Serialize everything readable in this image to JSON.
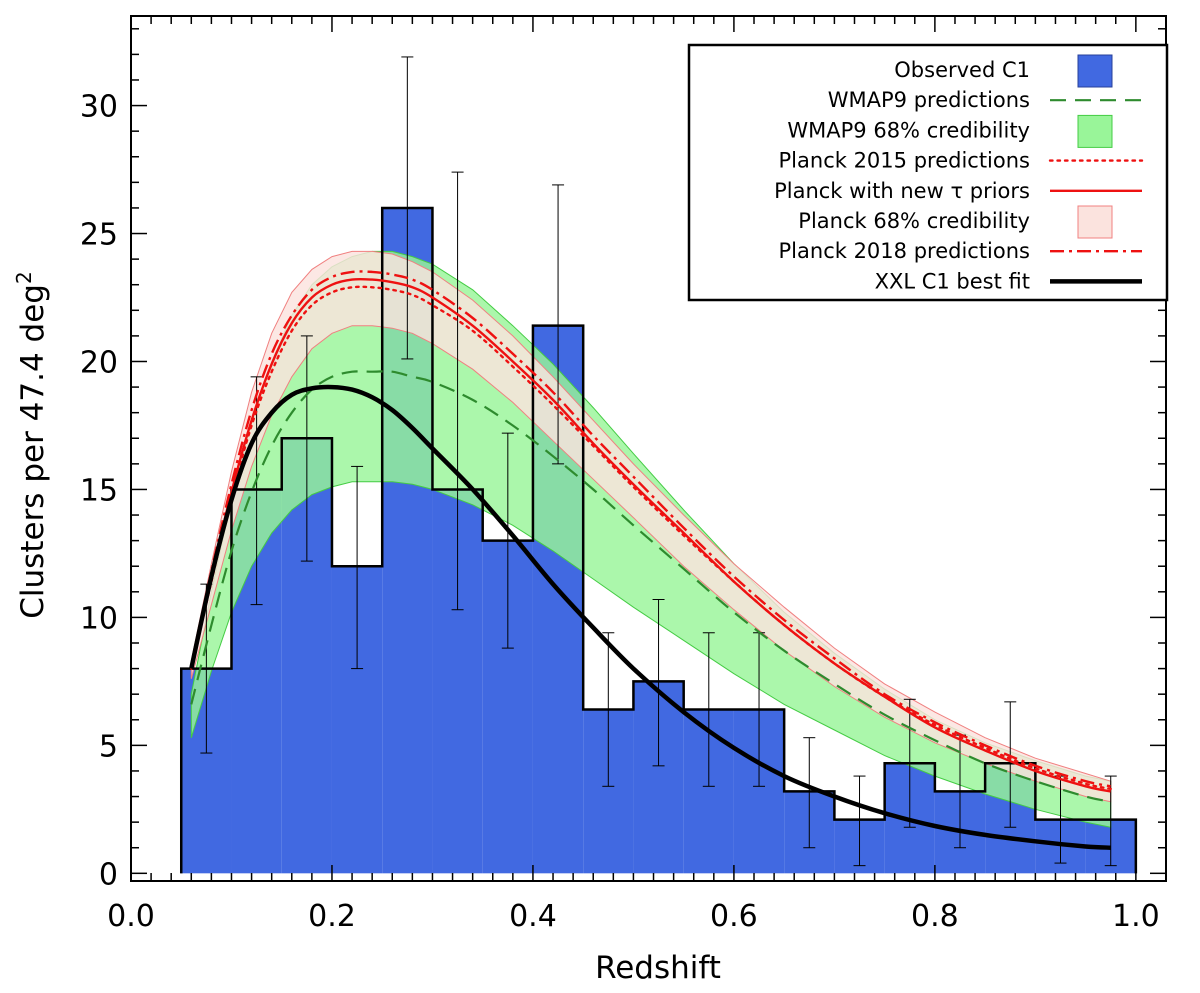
{
  "chart_data": {
    "type": "bar",
    "title": "",
    "xlabel": "Redshift",
    "ylabel": "Clusters per 47.4 deg",
    "ylabel_superscript": "2",
    "xlim": [
      0.0,
      1.03
    ],
    "ylim": [
      -0.3,
      33.5
    ],
    "x_ticks": [
      "0.0",
      "0.2",
      "0.4",
      "0.6",
      "0.8",
      "1.0"
    ],
    "y_ticks": [
      "0",
      "5",
      "10",
      "15",
      "20",
      "25",
      "30"
    ],
    "grid": false,
    "legend_position": "top-right",
    "legend": [
      {
        "label": "Observed C1",
        "style": "box",
        "color": "#4169e1"
      },
      {
        "label": "WMAP9 predictions",
        "style": "dashed",
        "color": "#2e8b2e"
      },
      {
        "label": "WMAP9 68% credibility",
        "style": "box",
        "color": "#99f599"
      },
      {
        "label": "Planck 2015 predictions",
        "style": "dotted",
        "color": "#ee1111"
      },
      {
        "label": "Planck with new τ priors",
        "style": "solid",
        "color": "#ee1111"
      },
      {
        "label": "Planck 68% credibility",
        "style": "box",
        "color": "#fbe3de"
      },
      {
        "label": "Planck 2018 predictions",
        "style": "dashdot",
        "color": "#ee1111"
      },
      {
        "label": "XXL C1 best fit",
        "style": "thick",
        "color": "#000000"
      }
    ],
    "histogram": {
      "name": "Observed C1",
      "bin_edges": [
        0.05,
        0.1,
        0.15,
        0.2,
        0.25,
        0.3,
        0.35,
        0.4,
        0.45,
        0.5,
        0.55,
        0.6,
        0.65,
        0.7,
        0.75,
        0.8,
        0.85,
        0.9,
        0.95,
        1.0
      ],
      "values": [
        8.0,
        15.0,
        17.0,
        12.0,
        26.0,
        15.0,
        13.0,
        21.4,
        6.4,
        7.5,
        6.4,
        6.4,
        3.2,
        2.1,
        4.3,
        3.2,
        4.3,
        2.1,
        2.1
      ],
      "color": "#4169e1",
      "errors": {
        "x": [
          0.075,
          0.125,
          0.175,
          0.225,
          0.275,
          0.325,
          0.375,
          0.425,
          0.475,
          0.525,
          0.575,
          0.625,
          0.675,
          0.725,
          0.775,
          0.825,
          0.875,
          0.925,
          0.975
        ],
        "lower": [
          4.7,
          10.5,
          12.2,
          8.0,
          20.1,
          10.3,
          8.8,
          16.0,
          3.4,
          4.2,
          3.4,
          3.4,
          1.0,
          0.3,
          1.8,
          1.0,
          1.8,
          0.4,
          0.3
        ],
        "upper": [
          11.3,
          19.4,
          21.0,
          15.9,
          31.9,
          27.4,
          17.2,
          26.9,
          9.4,
          10.7,
          9.4,
          9.4,
          5.3,
          3.8,
          6.8,
          5.4,
          6.7,
          3.8,
          3.8
        ]
      }
    },
    "x_model": [
      0.06,
      0.08,
      0.1,
      0.12,
      0.14,
      0.16,
      0.18,
      0.2,
      0.22,
      0.24,
      0.26,
      0.28,
      0.3,
      0.34,
      0.38,
      0.42,
      0.46,
      0.5,
      0.55,
      0.6,
      0.65,
      0.7,
      0.75,
      0.8,
      0.85,
      0.9,
      0.95,
      0.975
    ],
    "series": [
      {
        "name": "WMAP9 68% credibility",
        "type": "band",
        "color": "#99f599",
        "edge": "#44cc44",
        "lower": [
          5.3,
          7.9,
          10.2,
          12.0,
          13.3,
          14.2,
          14.8,
          15.1,
          15.3,
          15.3,
          15.3,
          15.2,
          15.0,
          14.4,
          13.6,
          12.6,
          11.5,
          10.4,
          9.1,
          7.8,
          6.6,
          5.6,
          4.6,
          3.8,
          3.1,
          2.5,
          2.0,
          1.8
        ],
        "upper": [
          7.0,
          11.0,
          14.6,
          17.6,
          20.0,
          21.8,
          23.0,
          23.7,
          24.1,
          24.3,
          24.3,
          24.1,
          23.8,
          22.8,
          21.4,
          19.9,
          18.2,
          16.4,
          14.2,
          12.1,
          10.2,
          8.6,
          7.2,
          6.0,
          5.1,
          4.4,
          3.8,
          3.6
        ]
      },
      {
        "name": "Planck 68% credibility",
        "type": "band",
        "color": "#fbe3de",
        "edge": "#f08080",
        "lower": [
          7.6,
          10.5,
          13.4,
          15.9,
          17.9,
          19.4,
          20.5,
          21.1,
          21.4,
          21.4,
          21.3,
          21.1,
          20.7,
          19.7,
          18.4,
          16.9,
          15.4,
          13.9,
          12.0,
          10.3,
          8.7,
          7.3,
          6.1,
          5.1,
          4.3,
          3.6,
          3.0,
          2.8
        ],
        "upper": [
          8.3,
          12.1,
          15.7,
          18.8,
          21.1,
          22.7,
          23.6,
          24.1,
          24.3,
          24.3,
          24.2,
          23.9,
          23.5,
          22.4,
          21.0,
          19.4,
          17.7,
          16.0,
          14.0,
          12.1,
          10.4,
          8.8,
          7.4,
          6.3,
          5.3,
          4.5,
          3.9,
          3.6
        ]
      },
      {
        "name": "WMAP9 predictions",
        "type": "line",
        "style": "dashed",
        "color": "#2e8b2e",
        "values": [
          6.6,
          9.7,
          12.6,
          14.9,
          16.7,
          18.0,
          18.9,
          19.4,
          19.6,
          19.6,
          19.6,
          19.4,
          19.2,
          18.5,
          17.5,
          16.3,
          15.0,
          13.6,
          11.9,
          10.2,
          8.7,
          7.4,
          6.2,
          5.2,
          4.3,
          3.6,
          3.0,
          2.8
        ]
      },
      {
        "name": "Planck 2015 predictions",
        "type": "line",
        "style": "dotted",
        "color": "#ee1111",
        "values": [
          8.0,
          11.4,
          14.7,
          17.5,
          19.6,
          21.2,
          22.2,
          22.7,
          22.9,
          22.9,
          22.8,
          22.6,
          22.2,
          21.2,
          19.8,
          18.3,
          16.7,
          15.1,
          13.2,
          11.4,
          9.7,
          8.2,
          6.9,
          5.8,
          4.9,
          4.1,
          3.5,
          3.3
        ]
      },
      {
        "name": "Planck with new τ priors",
        "type": "line",
        "style": "solid",
        "color": "#ee1111",
        "values": [
          8.0,
          11.6,
          14.9,
          17.7,
          19.9,
          21.5,
          22.5,
          23.0,
          23.2,
          23.2,
          23.1,
          22.9,
          22.5,
          21.4,
          20.0,
          18.5,
          16.8,
          15.2,
          13.3,
          11.4,
          9.7,
          8.2,
          6.9,
          5.7,
          4.8,
          4.0,
          3.4,
          3.2
        ]
      },
      {
        "name": "Planck 2018 predictions",
        "type": "line",
        "style": "dashdot",
        "color": "#ee1111",
        "values": [
          8.1,
          11.8,
          15.2,
          18.1,
          20.3,
          21.8,
          22.8,
          23.3,
          23.5,
          23.5,
          23.4,
          23.2,
          22.8,
          21.7,
          20.3,
          18.8,
          17.1,
          15.5,
          13.5,
          11.6,
          9.9,
          8.4,
          7.0,
          5.9,
          5.0,
          4.2,
          3.6,
          3.4
        ]
      },
      {
        "name": "XXL C1 best fit",
        "type": "line",
        "style": "thick",
        "color": "#000000",
        "values": [
          8.0,
          11.6,
          14.6,
          16.8,
          18.0,
          18.7,
          18.95,
          19.0,
          18.9,
          18.6,
          18.1,
          17.4,
          16.6,
          15.0,
          13.2,
          11.3,
          9.6,
          8.0,
          6.3,
          4.9,
          3.8,
          3.0,
          2.35,
          1.85,
          1.5,
          1.25,
          1.05,
          1.0
        ]
      }
    ]
  }
}
